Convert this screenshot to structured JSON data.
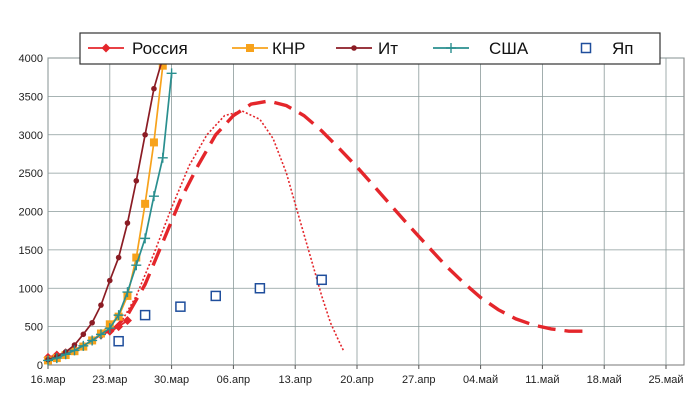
{
  "chart_data": {
    "type": "line",
    "x_axis": {
      "ticks": [
        "16.мар",
        "23.мар",
        "30.мар",
        "06.апр",
        "13.апр",
        "20.апр",
        "27.апр",
        "04.май",
        "11.май",
        "18.май",
        "25.май"
      ],
      "range_days": [
        0,
        70
      ]
    },
    "y_axis": {
      "ticks": [
        0,
        500,
        1000,
        1500,
        2000,
        2500,
        3000,
        3500,
        4000
      ],
      "ylim": [
        0,
        4000
      ]
    },
    "grid": true,
    "legend": {
      "placement": "top",
      "border": true
    },
    "series": [
      {
        "name": "Россия",
        "color": "#e4262b",
        "marker": "diamond",
        "points": [
          [
            0,
            100
          ],
          [
            1,
            130
          ],
          [
            2,
            160
          ],
          [
            3,
            200
          ],
          [
            4,
            250
          ],
          [
            5,
            320
          ],
          [
            6,
            390
          ],
          [
            7,
            440
          ],
          [
            8,
            500
          ],
          [
            9,
            580
          ]
        ]
      },
      {
        "name": "КНР",
        "color": "#f7a21b",
        "marker": "square",
        "points": [
          [
            0,
            60
          ],
          [
            1,
            90
          ],
          [
            2,
            130
          ],
          [
            3,
            180
          ],
          [
            4,
            240
          ],
          [
            5,
            320
          ],
          [
            6,
            410
          ],
          [
            7,
            530
          ],
          [
            8,
            630
          ],
          [
            9,
            900
          ],
          [
            10,
            1400
          ],
          [
            11,
            2100
          ],
          [
            12,
            2900
          ],
          [
            13,
            3900
          ]
        ]
      },
      {
        "name": "Ит",
        "color": "#8b1c24",
        "marker": "circle",
        "points": [
          [
            0,
            70
          ],
          [
            1,
            110
          ],
          [
            2,
            170
          ],
          [
            3,
            260
          ],
          [
            4,
            400
          ],
          [
            5,
            550
          ],
          [
            6,
            780
          ],
          [
            7,
            1100
          ],
          [
            8,
            1400
          ],
          [
            9,
            1850
          ],
          [
            10,
            2400
          ],
          [
            11,
            3000
          ],
          [
            12,
            3600
          ],
          [
            13,
            4000
          ]
        ]
      },
      {
        "name": "США",
        "color": "#2a8f8f",
        "marker": "plus",
        "points": [
          [
            0,
            60
          ],
          [
            1,
            90
          ],
          [
            2,
            140
          ],
          [
            3,
            190
          ],
          [
            4,
            250
          ],
          [
            5,
            320
          ],
          [
            6,
            400
          ],
          [
            7,
            480
          ],
          [
            8,
            650
          ],
          [
            9,
            950
          ],
          [
            10,
            1300
          ],
          [
            11,
            1650
          ],
          [
            12,
            2200
          ],
          [
            13,
            2700
          ],
          [
            14,
            3800
          ]
        ]
      },
      {
        "name": "Яп",
        "color": "#1f4e9c",
        "marker": "square-open",
        "points": [
          [
            8,
            310
          ],
          [
            11,
            650
          ],
          [
            15,
            760
          ],
          [
            19,
            900
          ],
          [
            24,
            1000
          ],
          [
            31,
            1110
          ]
        ]
      }
    ],
    "fits": [
      {
        "color": "#e4262b",
        "style": "dashed",
        "points": [
          [
            7,
            420
          ],
          [
            9,
            650
          ],
          [
            11,
            1050
          ],
          [
            13,
            1600
          ],
          [
            15,
            2150
          ],
          [
            17,
            2600
          ],
          [
            19,
            3000
          ],
          [
            21,
            3250
          ],
          [
            23,
            3400
          ],
          [
            25,
            3440
          ],
          [
            27,
            3380
          ],
          [
            29,
            3250
          ],
          [
            31,
            3050
          ],
          [
            33,
            2820
          ],
          [
            35,
            2580
          ],
          [
            37,
            2320
          ],
          [
            39,
            2060
          ],
          [
            41,
            1800
          ],
          [
            43,
            1550
          ],
          [
            45,
            1300
          ],
          [
            47,
            1080
          ],
          [
            49,
            880
          ],
          [
            51,
            720
          ],
          [
            53,
            600
          ],
          [
            55,
            520
          ],
          [
            57,
            470
          ],
          [
            59,
            440
          ],
          [
            61,
            440
          ]
        ]
      },
      {
        "color": "#e4262b",
        "style": "dotted",
        "points": [
          [
            8,
            500
          ],
          [
            10,
            900
          ],
          [
            12,
            1450
          ],
          [
            14,
            2050
          ],
          [
            16,
            2600
          ],
          [
            18,
            3000
          ],
          [
            20,
            3250
          ],
          [
            22,
            3310
          ],
          [
            24,
            3200
          ],
          [
            25.5,
            2950
          ],
          [
            27,
            2500
          ],
          [
            28.5,
            1900
          ],
          [
            30,
            1300
          ],
          [
            31,
            900
          ],
          [
            32,
            550
          ],
          [
            33,
            300
          ],
          [
            33.5,
            180
          ]
        ]
      }
    ]
  }
}
